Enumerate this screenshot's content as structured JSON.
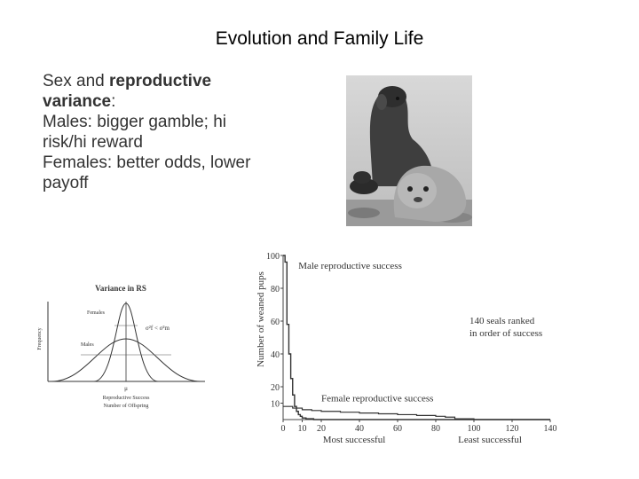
{
  "slide": {
    "title": "Evolution and Family Life",
    "bullets": {
      "line1_prefix": "Sex and ",
      "line1_bold": "reproductive variance",
      "line1_suffix": ":",
      "line2": "Males: bigger gamble; hi risk/hi reward",
      "line3": "Females: better odds, lower payoff"
    }
  },
  "variance_figure": {
    "title": "Variance in RS",
    "ylabel": "Frequency",
    "females_label": "Females",
    "males_label": "Males",
    "inequality": "σ²f < σ²m",
    "mu_label": "μ",
    "xlabel_line1": "Reproductive Success",
    "xlabel_line2": "Number of Offspring"
  },
  "chart_data": {
    "type": "line",
    "ylabel": "Number of weaned pups",
    "xlabel_left": "Most successful",
    "xlabel_right": "Least successful",
    "annotation_line1": "140 seals ranked",
    "annotation_line2": "in order of success",
    "xlim": [
      0,
      140
    ],
    "ylim": [
      0,
      100
    ],
    "xticks": [
      0,
      10,
      20,
      40,
      60,
      80,
      100,
      120,
      140
    ],
    "yticks": [
      10,
      20,
      40,
      60,
      80,
      100
    ],
    "series": [
      {
        "name": "Male reproductive success",
        "x": [
          0,
          1,
          2,
          3,
          4,
          5,
          6,
          7,
          8,
          9,
          10,
          12,
          14,
          16,
          18,
          20,
          140
        ],
        "y": [
          100,
          96,
          58,
          40,
          25,
          15,
          8,
          5,
          3,
          2,
          1,
          0.5,
          0.5,
          0,
          0,
          0,
          0
        ]
      },
      {
        "name": "Female reproductive success",
        "x": [
          0,
          5,
          10,
          15,
          20,
          30,
          40,
          50,
          60,
          70,
          80,
          85,
          90,
          100,
          110,
          120,
          130,
          140
        ],
        "y": [
          8,
          7,
          6,
          5.5,
          5,
          4.5,
          4,
          3.5,
          3,
          2.5,
          2,
          1.5,
          0.5,
          0,
          0,
          0,
          0,
          0
        ]
      }
    ]
  }
}
